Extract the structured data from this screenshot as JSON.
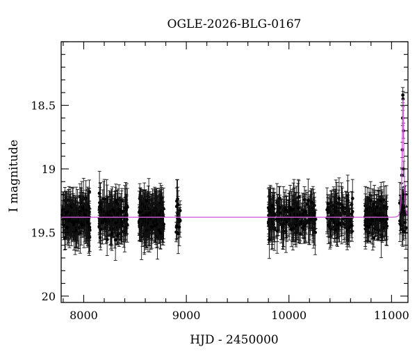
{
  "chart_data": {
    "type": "scatter",
    "title": "OGLE-2026-BLG-0167",
    "xlabel": "HJD - 2450000",
    "ylabel": "I magnitude",
    "xlim": [
      7780,
      11160
    ],
    "ylim": [
      20.05,
      18.0
    ],
    "y_inverted": true,
    "x_ticks": [
      8000,
      9000,
      10000,
      11000
    ],
    "x_tick_labels": [
      "8000",
      "9000",
      "10000",
      "11000"
    ],
    "y_ticks": [
      18.5,
      19,
      19.5,
      20
    ],
    "y_tick_labels": [
      "18.5",
      "19",
      "19.5",
      "20"
    ],
    "grid": false,
    "legend": "none",
    "colors": {
      "points": "#000000",
      "model": "#d65ce0"
    },
    "series": [
      {
        "kind": "points_with_errorbars",
        "baseline_mag": 19.38,
        "segments": [
          {
            "x_start": 7790,
            "x_end": 8060,
            "count": 170
          },
          {
            "x_start": 8150,
            "x_end": 8430,
            "count": 160
          },
          {
            "x_start": 8540,
            "x_end": 8780,
            "count": 210
          },
          {
            "x_start": 8900,
            "x_end": 8940,
            "count": 18
          },
          {
            "x_start": 9800,
            "x_end": 9860,
            "count": 45
          },
          {
            "x_start": 9880,
            "x_end": 10260,
            "count": 160
          },
          {
            "x_start": 10370,
            "x_end": 10620,
            "count": 110
          },
          {
            "x_start": 10740,
            "x_end": 10960,
            "count": 120
          },
          {
            "x_start": 11080,
            "x_end": 11140,
            "count": 22
          }
        ],
        "event_points": [
          {
            "x": 11095,
            "y": 19.3
          },
          {
            "x": 11100,
            "y": 19.05
          },
          {
            "x": 11105,
            "y": 18.85
          },
          {
            "x": 11108,
            "y": 18.6
          },
          {
            "x": 11110,
            "y": 18.42
          },
          {
            "x": 11112,
            "y": 18.45
          },
          {
            "x": 11115,
            "y": 18.7
          },
          {
            "x": 11118,
            "y": 19.0
          },
          {
            "x": 11122,
            "y": 19.2
          },
          {
            "x": 11130,
            "y": 19.3
          }
        ]
      },
      {
        "kind": "model_curve",
        "baseline_mag": 19.38,
        "peak_mag": 18.45,
        "peak_x": 11112
      }
    ]
  }
}
